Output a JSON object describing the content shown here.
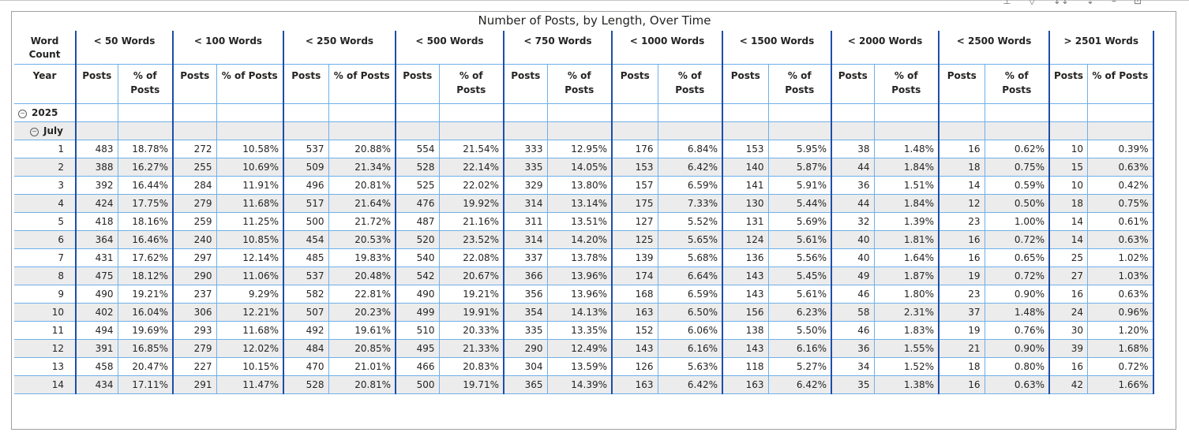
{
  "title": "Number of Posts, by Length, Over Time",
  "header": {
    "word_count_label": "Word Count",
    "year_label": "Year",
    "groups": [
      "< 50 Words",
      "< 100 Words",
      "< 250 Words",
      "< 500 Words",
      "< 750 Words",
      "< 1000 Words",
      "< 1500 Words",
      "< 2000 Words",
      "< 2500 Words",
      "> 2501 Words"
    ],
    "sub_posts": "Posts",
    "sub_pct": "% of Posts"
  },
  "hierarchy": {
    "year": "2025",
    "month": "July"
  },
  "rows": [
    {
      "day": "1",
      "cells": [
        "483",
        "18.78%",
        "272",
        "10.58%",
        "537",
        "20.88%",
        "554",
        "21.54%",
        "333",
        "12.95%",
        "176",
        "6.84%",
        "153",
        "5.95%",
        "38",
        "1.48%",
        "16",
        "0.62%",
        "10",
        "0.39%"
      ]
    },
    {
      "day": "2",
      "cells": [
        "388",
        "16.27%",
        "255",
        "10.69%",
        "509",
        "21.34%",
        "528",
        "22.14%",
        "335",
        "14.05%",
        "153",
        "6.42%",
        "140",
        "5.87%",
        "44",
        "1.84%",
        "18",
        "0.75%",
        "15",
        "0.63%"
      ]
    },
    {
      "day": "3",
      "cells": [
        "392",
        "16.44%",
        "284",
        "11.91%",
        "496",
        "20.81%",
        "525",
        "22.02%",
        "329",
        "13.80%",
        "157",
        "6.59%",
        "141",
        "5.91%",
        "36",
        "1.51%",
        "14",
        "0.59%",
        "10",
        "0.42%"
      ]
    },
    {
      "day": "4",
      "cells": [
        "424",
        "17.75%",
        "279",
        "11.68%",
        "517",
        "21.64%",
        "476",
        "19.92%",
        "314",
        "13.14%",
        "175",
        "7.33%",
        "130",
        "5.44%",
        "44",
        "1.84%",
        "12",
        "0.50%",
        "18",
        "0.75%"
      ]
    },
    {
      "day": "5",
      "cells": [
        "418",
        "18.16%",
        "259",
        "11.25%",
        "500",
        "21.72%",
        "487",
        "21.16%",
        "311",
        "13.51%",
        "127",
        "5.52%",
        "131",
        "5.69%",
        "32",
        "1.39%",
        "23",
        "1.00%",
        "14",
        "0.61%"
      ]
    },
    {
      "day": "6",
      "cells": [
        "364",
        "16.46%",
        "240",
        "10.85%",
        "454",
        "20.53%",
        "520",
        "23.52%",
        "314",
        "14.20%",
        "125",
        "5.65%",
        "124",
        "5.61%",
        "40",
        "1.81%",
        "16",
        "0.72%",
        "14",
        "0.63%"
      ]
    },
    {
      "day": "7",
      "cells": [
        "431",
        "17.62%",
        "297",
        "12.14%",
        "485",
        "19.83%",
        "540",
        "22.08%",
        "337",
        "13.78%",
        "139",
        "5.68%",
        "136",
        "5.56%",
        "40",
        "1.64%",
        "16",
        "0.65%",
        "25",
        "1.02%"
      ]
    },
    {
      "day": "8",
      "cells": [
        "475",
        "18.12%",
        "290",
        "11.06%",
        "537",
        "20.48%",
        "542",
        "20.67%",
        "366",
        "13.96%",
        "174",
        "6.64%",
        "143",
        "5.45%",
        "49",
        "1.87%",
        "19",
        "0.72%",
        "27",
        "1.03%"
      ]
    },
    {
      "day": "9",
      "cells": [
        "490",
        "19.21%",
        "237",
        "9.29%",
        "582",
        "22.81%",
        "490",
        "19.21%",
        "356",
        "13.96%",
        "168",
        "6.59%",
        "143",
        "5.61%",
        "46",
        "1.80%",
        "23",
        "0.90%",
        "16",
        "0.63%"
      ]
    },
    {
      "day": "10",
      "cells": [
        "402",
        "16.04%",
        "306",
        "12.21%",
        "507",
        "20.23%",
        "499",
        "19.91%",
        "354",
        "14.13%",
        "163",
        "6.50%",
        "156",
        "6.23%",
        "58",
        "2.31%",
        "37",
        "1.48%",
        "24",
        "0.96%"
      ]
    },
    {
      "day": "11",
      "cells": [
        "494",
        "19.69%",
        "293",
        "11.68%",
        "492",
        "19.61%",
        "510",
        "20.33%",
        "335",
        "13.35%",
        "152",
        "6.06%",
        "138",
        "5.50%",
        "46",
        "1.83%",
        "19",
        "0.76%",
        "30",
        "1.20%"
      ]
    },
    {
      "day": "12",
      "cells": [
        "391",
        "16.85%",
        "279",
        "12.02%",
        "484",
        "20.85%",
        "495",
        "21.33%",
        "290",
        "12.49%",
        "143",
        "6.16%",
        "143",
        "6.16%",
        "36",
        "1.55%",
        "21",
        "0.90%",
        "39",
        "1.68%"
      ]
    },
    {
      "day": "13",
      "cells": [
        "458",
        "20.47%",
        "227",
        "10.15%",
        "470",
        "21.01%",
        "466",
        "20.83%",
        "304",
        "13.59%",
        "126",
        "5.63%",
        "118",
        "5.27%",
        "34",
        "1.52%",
        "18",
        "0.80%",
        "16",
        "0.72%"
      ]
    },
    {
      "day": "14",
      "cells": [
        "434",
        "17.11%",
        "291",
        "11.47%",
        "528",
        "20.81%",
        "500",
        "19.71%",
        "365",
        "14.39%",
        "163",
        "6.42%",
        "163",
        "6.42%",
        "35",
        "1.38%",
        "16",
        "0.63%",
        "42",
        "1.66%"
      ]
    }
  ]
}
